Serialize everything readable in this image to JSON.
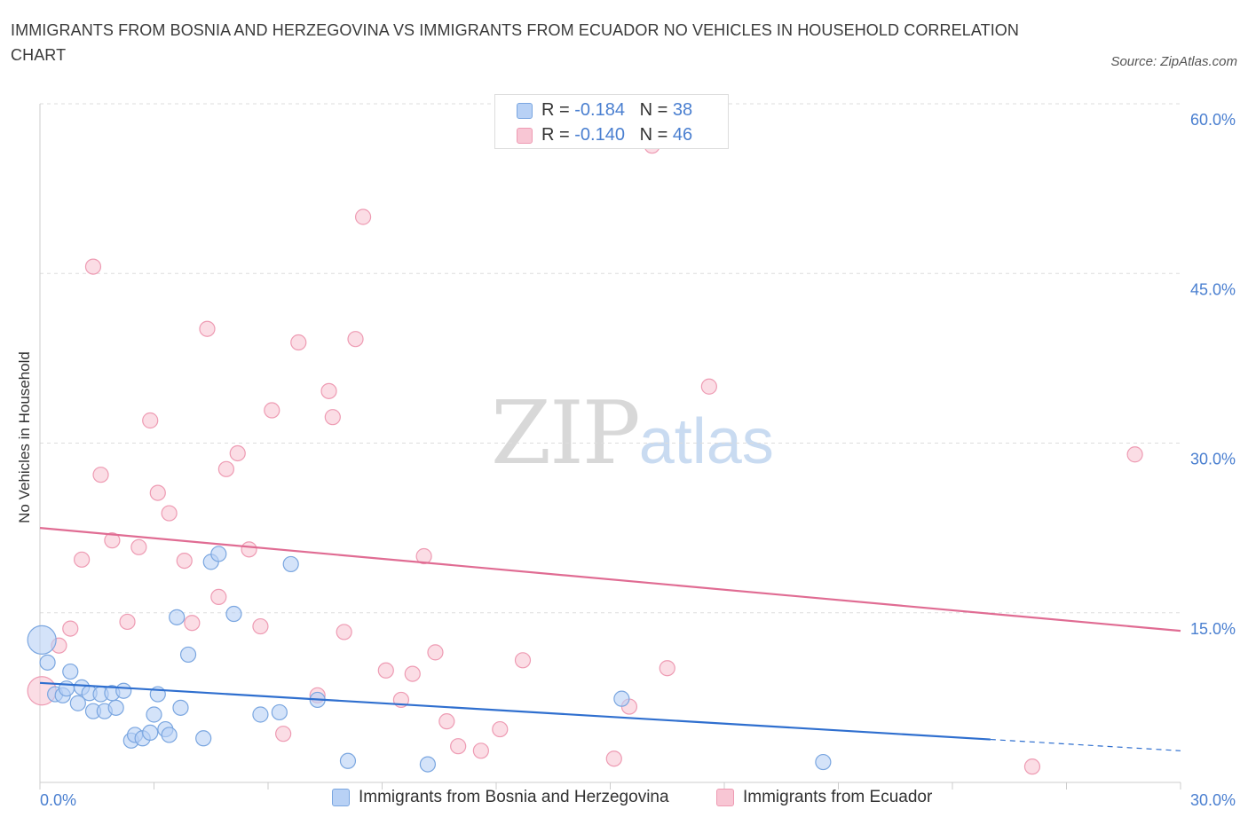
{
  "title": "IMMIGRANTS FROM BOSNIA AND HERZEGOVINA VS IMMIGRANTS FROM ECUADOR NO VEHICLES IN HOUSEHOLD CORRELATION CHART",
  "source": "Source: ZipAtlas.com",
  "watermark": {
    "zip": "ZIP",
    "atlas": "atlas"
  },
  "legend_top": [
    {
      "r_label": "R =",
      "r_value": "-0.184",
      "n_label": "N =",
      "n_value": "38"
    },
    {
      "r_label": "R =",
      "r_value": "-0.140",
      "n_label": "N =",
      "n_value": "46"
    }
  ],
  "colors": {
    "bosnia_fill": "#b8d1f5",
    "bosnia_stroke": "#7aa6e0",
    "bosnia_line": "#2f6fcf",
    "ecuador_fill": "#f8c6d4",
    "ecuador_stroke": "#ee9bb3",
    "ecuador_line": "#e06c93",
    "axis_label": "#4a7fd0",
    "grid": "#dddddd"
  },
  "chart_data": {
    "type": "scatter",
    "title": "IMMIGRANTS FROM BOSNIA AND HERZEGOVINA VS IMMIGRANTS FROM ECUADOR NO VEHICLES IN HOUSEHOLD CORRELATION CHART",
    "xlabel": "",
    "ylabel": "No Vehicles in Household",
    "xlim": [
      0,
      30
    ],
    "ylim": [
      0,
      60
    ],
    "x_tick_labels": [
      "0.0%",
      "30.0%"
    ],
    "y_tick_labels": [
      "15.0%",
      "30.0%",
      "45.0%",
      "60.0%"
    ],
    "y_ticks": [
      15,
      30,
      45,
      60
    ],
    "grid": true,
    "legend_position": "bottom",
    "series": [
      {
        "name": "Immigrants from Bosnia and Herzegovina",
        "r": -0.184,
        "n": 38,
        "trend": {
          "x0": 0,
          "y0": 8.8,
          "x1": 25,
          "y1": 3.8,
          "dash_x1": 30,
          "dash_y1": 2.8
        },
        "points": [
          {
            "x": 0.05,
            "y": 12.6,
            "big": true
          },
          {
            "x": 0.2,
            "y": 10.6
          },
          {
            "x": 0.4,
            "y": 7.8
          },
          {
            "x": 0.6,
            "y": 7.7
          },
          {
            "x": 0.7,
            "y": 8.3
          },
          {
            "x": 0.8,
            "y": 9.8
          },
          {
            "x": 1.0,
            "y": 7.0
          },
          {
            "x": 1.1,
            "y": 8.4
          },
          {
            "x": 1.3,
            "y": 7.9
          },
          {
            "x": 1.4,
            "y": 6.3
          },
          {
            "x": 1.6,
            "y": 7.8
          },
          {
            "x": 1.7,
            "y": 6.3
          },
          {
            "x": 1.9,
            "y": 7.9
          },
          {
            "x": 2.0,
            "y": 6.6
          },
          {
            "x": 2.2,
            "y": 8.1
          },
          {
            "x": 2.4,
            "y": 3.7
          },
          {
            "x": 2.5,
            "y": 4.2
          },
          {
            "x": 2.7,
            "y": 3.9
          },
          {
            "x": 2.9,
            "y": 4.4
          },
          {
            "x": 3.0,
            "y": 6.0
          },
          {
            "x": 3.1,
            "y": 7.8
          },
          {
            "x": 3.3,
            "y": 4.7
          },
          {
            "x": 3.4,
            "y": 4.2
          },
          {
            "x": 3.6,
            "y": 14.6
          },
          {
            "x": 3.7,
            "y": 6.6
          },
          {
            "x": 3.9,
            "y": 11.3
          },
          {
            "x": 4.3,
            "y": 3.9
          },
          {
            "x": 4.5,
            "y": 19.5
          },
          {
            "x": 4.7,
            "y": 20.2
          },
          {
            "x": 5.1,
            "y": 14.9
          },
          {
            "x": 5.8,
            "y": 6.0
          },
          {
            "x": 6.3,
            "y": 6.2
          },
          {
            "x": 6.6,
            "y": 19.3
          },
          {
            "x": 7.3,
            "y": 7.3
          },
          {
            "x": 8.1,
            "y": 1.9
          },
          {
            "x": 10.2,
            "y": 1.6
          },
          {
            "x": 15.3,
            "y": 7.4
          },
          {
            "x": 20.6,
            "y": 1.8
          }
        ]
      },
      {
        "name": "Immigrants from Ecuador",
        "r": -0.14,
        "n": 46,
        "trend": {
          "x0": 0,
          "y0": 22.5,
          "x1": 30,
          "y1": 13.4
        },
        "points": [
          {
            "x": 0.05,
            "y": 8.1,
            "big": true
          },
          {
            "x": 0.5,
            "y": 12.1
          },
          {
            "x": 0.8,
            "y": 13.6
          },
          {
            "x": 1.1,
            "y": 19.7
          },
          {
            "x": 1.4,
            "y": 45.6
          },
          {
            "x": 1.6,
            "y": 27.2
          },
          {
            "x": 1.9,
            "y": 21.4
          },
          {
            "x": 2.3,
            "y": 14.2
          },
          {
            "x": 2.6,
            "y": 20.8
          },
          {
            "x": 2.9,
            "y": 32.0
          },
          {
            "x": 3.1,
            "y": 25.6
          },
          {
            "x": 3.4,
            "y": 23.8
          },
          {
            "x": 3.8,
            "y": 19.6
          },
          {
            "x": 4.0,
            "y": 14.1
          },
          {
            "x": 4.4,
            "y": 40.1
          },
          {
            "x": 4.7,
            "y": 16.4
          },
          {
            "x": 4.9,
            "y": 27.7
          },
          {
            "x": 5.2,
            "y": 29.1
          },
          {
            "x": 5.5,
            "y": 20.6
          },
          {
            "x": 5.8,
            "y": 13.8
          },
          {
            "x": 6.1,
            "y": 32.9
          },
          {
            "x": 6.4,
            "y": 4.3
          },
          {
            "x": 6.8,
            "y": 38.9
          },
          {
            "x": 7.3,
            "y": 7.7
          },
          {
            "x": 7.6,
            "y": 34.6
          },
          {
            "x": 7.7,
            "y": 32.3
          },
          {
            "x": 8.0,
            "y": 13.3
          },
          {
            "x": 8.3,
            "y": 39.2
          },
          {
            "x": 8.5,
            "y": 50.0
          },
          {
            "x": 9.1,
            "y": 9.9
          },
          {
            "x": 9.5,
            "y": 7.3
          },
          {
            "x": 9.8,
            "y": 9.6
          },
          {
            "x": 10.1,
            "y": 20.0
          },
          {
            "x": 10.4,
            "y": 11.5
          },
          {
            "x": 10.7,
            "y": 5.4
          },
          {
            "x": 11.0,
            "y": 3.2
          },
          {
            "x": 11.6,
            "y": 2.8
          },
          {
            "x": 12.1,
            "y": 4.7
          },
          {
            "x": 12.7,
            "y": 10.8
          },
          {
            "x": 15.1,
            "y": 2.1
          },
          {
            "x": 15.5,
            "y": 6.7
          },
          {
            "x": 16.1,
            "y": 56.3
          },
          {
            "x": 16.5,
            "y": 10.1
          },
          {
            "x": 17.6,
            "y": 35.0
          },
          {
            "x": 26.1,
            "y": 1.4
          },
          {
            "x": 28.8,
            "y": 29.0
          }
        ]
      }
    ]
  }
}
